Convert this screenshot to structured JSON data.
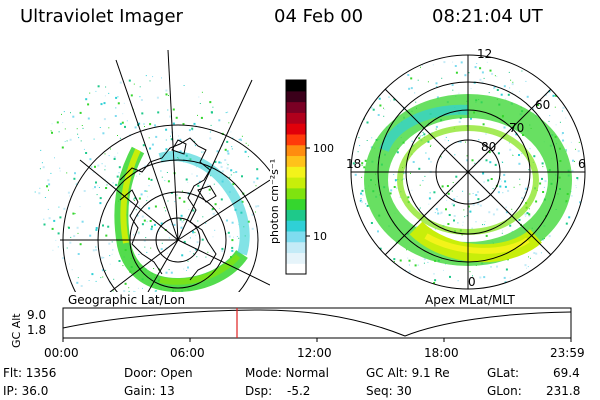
{
  "header": {
    "instrument": "Ultraviolet Imager",
    "date": "04 Feb 00",
    "time": "08:21:04 UT"
  },
  "colorbar": {
    "unit_label": "photon cm⁻²s⁻¹",
    "ticks": [
      "100",
      "10"
    ],
    "colors": [
      "#ffffff",
      "#e6f4fa",
      "#c4ebf7",
      "#7fdcef",
      "#2fd0d6",
      "#1ec98a",
      "#35d62e",
      "#7fe30f",
      "#c8ee0a",
      "#f3f31a",
      "#ffc21a",
      "#ff8d0f",
      "#ff3b0a",
      "#e1000a",
      "#b0001c",
      "#7a0024",
      "#3b001a",
      "#000000"
    ]
  },
  "maps": {
    "left_label": "Geographic Lat/Lon",
    "right_label": "Apex MLat/MLT",
    "mlt_labels": {
      "top": "12",
      "left": "18",
      "right": "6",
      "bottom": "0"
    },
    "lat_labels": [
      "60",
      "70",
      "80"
    ]
  },
  "timeline": {
    "axis_label": "GC Alt",
    "y_ticks": [
      "9.0",
      "1.8"
    ],
    "x_ticks": [
      "00:00",
      "06:00",
      "12:00",
      "18:00",
      "23:59"
    ],
    "marker_time": "08:21"
  },
  "info": {
    "row1": {
      "flt": "Flt: 1356",
      "door": "Door: Open",
      "mode": "Mode: Normal",
      "gc_alt": "GC Alt: 9.1 Re",
      "glat_label": "GLat:",
      "glat_value": "69.4"
    },
    "row2": {
      "ip": "IP: 36.0",
      "gain": "Gain: 13",
      "dsp_label": "Dsp:",
      "dsp_value": "-5.2",
      "seq": "Seq: 30",
      "glon_label": "GLon:",
      "glon_value": "231.8"
    }
  }
}
